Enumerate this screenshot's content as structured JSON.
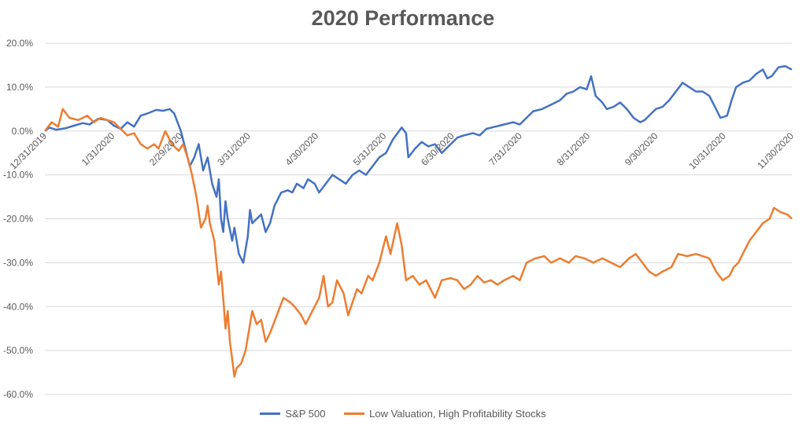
{
  "chart_data": {
    "type": "line",
    "title": "2020 Performance",
    "xlabel": "",
    "ylabel": "",
    "ylim": [
      -0.6,
      0.2
    ],
    "y_ticks": [
      {
        "value": 0.2,
        "label": "20.0%"
      },
      {
        "value": 0.1,
        "label": "10.0%"
      },
      {
        "value": 0.0,
        "label": "0.0%"
      },
      {
        "value": -0.1,
        "label": "-10.0%"
      },
      {
        "value": -0.2,
        "label": "-20.0%"
      },
      {
        "value": -0.3,
        "label": "-30.0%"
      },
      {
        "value": -0.4,
        "label": "-40.0%"
      },
      {
        "value": -0.5,
        "label": "-50.0%"
      },
      {
        "value": -0.6,
        "label": "-60.0%"
      }
    ],
    "x_ticks": [
      "12/31/2019",
      "1/31/2020",
      "2/29/2020",
      "3/31/2020",
      "4/30/2020",
      "5/31/2020",
      "6/30/2020",
      "7/31/2020",
      "8/31/2020",
      "9/30/2020",
      "10/31/2020",
      "11/30/2020"
    ],
    "grid": "horizontal",
    "legend_position": "bottom",
    "series": [
      {
        "name": "S&P 500",
        "color": "#4472C4",
        "points": [
          [
            "2019-12-31",
            0.0
          ],
          [
            "2020-01-02",
            0.008
          ],
          [
            "2020-01-05",
            0.003
          ],
          [
            "2020-01-09",
            0.006
          ],
          [
            "2020-01-13",
            0.012
          ],
          [
            "2020-01-17",
            0.018
          ],
          [
            "2020-01-20",
            0.015
          ],
          [
            "2020-01-24",
            0.028
          ],
          [
            "2020-01-28",
            0.025
          ],
          [
            "2020-01-31",
            0.012
          ],
          [
            "2020-02-03",
            0.005
          ],
          [
            "2020-02-06",
            0.02
          ],
          [
            "2020-02-09",
            0.01
          ],
          [
            "2020-02-12",
            0.035
          ],
          [
            "2020-02-15",
            0.04
          ],
          [
            "2020-02-19",
            0.048
          ],
          [
            "2020-02-22",
            0.046
          ],
          [
            "2020-02-25",
            0.05
          ],
          [
            "2020-02-27",
            0.04
          ],
          [
            "2020-03-01",
            0.0
          ],
          [
            "2020-03-03",
            -0.04
          ],
          [
            "2020-03-05",
            -0.08
          ],
          [
            "2020-03-07",
            -0.06
          ],
          [
            "2020-03-09",
            -0.03
          ],
          [
            "2020-03-11",
            -0.09
          ],
          [
            "2020-03-13",
            -0.06
          ],
          [
            "2020-03-15",
            -0.12
          ],
          [
            "2020-03-17",
            -0.15
          ],
          [
            "2020-03-18",
            -0.11
          ],
          [
            "2020-03-19",
            -0.2
          ],
          [
            "2020-03-20",
            -0.23
          ],
          [
            "2020-03-21",
            -0.16
          ],
          [
            "2020-03-22",
            -0.2
          ],
          [
            "2020-03-24",
            -0.25
          ],
          [
            "2020-03-25",
            -0.22
          ],
          [
            "2020-03-27",
            -0.28
          ],
          [
            "2020-03-29",
            -0.3
          ],
          [
            "2020-03-31",
            -0.24
          ],
          [
            "2020-04-01",
            -0.18
          ],
          [
            "2020-04-02",
            -0.21
          ],
          [
            "2020-04-04",
            -0.2
          ],
          [
            "2020-04-06",
            -0.19
          ],
          [
            "2020-04-08",
            -0.23
          ],
          [
            "2020-04-10",
            -0.21
          ],
          [
            "2020-04-12",
            -0.17
          ],
          [
            "2020-04-15",
            -0.14
          ],
          [
            "2020-04-18",
            -0.135
          ],
          [
            "2020-04-20",
            -0.14
          ],
          [
            "2020-04-22",
            -0.12
          ],
          [
            "2020-04-25",
            -0.13
          ],
          [
            "2020-04-27",
            -0.11
          ],
          [
            "2020-04-30",
            -0.12
          ],
          [
            "2020-05-02",
            -0.14
          ],
          [
            "2020-05-05",
            -0.12
          ],
          [
            "2020-05-08",
            -0.1
          ],
          [
            "2020-05-11",
            -0.11
          ],
          [
            "2020-05-14",
            -0.12
          ],
          [
            "2020-05-17",
            -0.1
          ],
          [
            "2020-05-20",
            -0.09
          ],
          [
            "2020-05-23",
            -0.1
          ],
          [
            "2020-05-26",
            -0.08
          ],
          [
            "2020-05-29",
            -0.06
          ],
          [
            "2020-06-01",
            -0.05
          ],
          [
            "2020-06-04",
            -0.02
          ],
          [
            "2020-06-08",
            0.008
          ],
          [
            "2020-06-10",
            -0.005
          ],
          [
            "2020-06-11",
            -0.06
          ],
          [
            "2020-06-14",
            -0.04
          ],
          [
            "2020-06-17",
            -0.025
          ],
          [
            "2020-06-20",
            -0.035
          ],
          [
            "2020-06-23",
            -0.03
          ],
          [
            "2020-06-26",
            -0.05
          ],
          [
            "2020-06-30",
            -0.03
          ],
          [
            "2020-07-03",
            -0.015
          ],
          [
            "2020-07-06",
            -0.01
          ],
          [
            "2020-07-10",
            -0.005
          ],
          [
            "2020-07-13",
            -0.01
          ],
          [
            "2020-07-16",
            0.005
          ],
          [
            "2020-07-20",
            0.01
          ],
          [
            "2020-07-24",
            0.015
          ],
          [
            "2020-07-28",
            0.02
          ],
          [
            "2020-07-31",
            0.015
          ],
          [
            "2020-08-03",
            0.03
          ],
          [
            "2020-08-06",
            0.045
          ],
          [
            "2020-08-10",
            0.05
          ],
          [
            "2020-08-14",
            0.06
          ],
          [
            "2020-08-18",
            0.07
          ],
          [
            "2020-08-21",
            0.085
          ],
          [
            "2020-08-24",
            0.09
          ],
          [
            "2020-08-27",
            0.1
          ],
          [
            "2020-08-30",
            0.095
          ],
          [
            "2020-09-01",
            0.125
          ],
          [
            "2020-09-03",
            0.08
          ],
          [
            "2020-09-06",
            0.065
          ],
          [
            "2020-09-08",
            0.05
          ],
          [
            "2020-09-11",
            0.055
          ],
          [
            "2020-09-14",
            0.065
          ],
          [
            "2020-09-17",
            0.05
          ],
          [
            "2020-09-20",
            0.03
          ],
          [
            "2020-09-23",
            0.02
          ],
          [
            "2020-09-25",
            0.025
          ],
          [
            "2020-09-28",
            0.04
          ],
          [
            "2020-09-30",
            0.05
          ],
          [
            "2020-10-03",
            0.055
          ],
          [
            "2020-10-06",
            0.07
          ],
          [
            "2020-10-09",
            0.09
          ],
          [
            "2020-10-12",
            0.11
          ],
          [
            "2020-10-15",
            0.1
          ],
          [
            "2020-10-18",
            0.09
          ],
          [
            "2020-10-21",
            0.09
          ],
          [
            "2020-10-24",
            0.08
          ],
          [
            "2020-10-27",
            0.05
          ],
          [
            "2020-10-29",
            0.03
          ],
          [
            "2020-11-01",
            0.035
          ],
          [
            "2020-11-03",
            0.07
          ],
          [
            "2020-11-05",
            0.1
          ],
          [
            "2020-11-08",
            0.11
          ],
          [
            "2020-11-11",
            0.115
          ],
          [
            "2020-11-14",
            0.13
          ],
          [
            "2020-11-17",
            0.14
          ],
          [
            "2020-11-19",
            0.12
          ],
          [
            "2020-11-21",
            0.125
          ],
          [
            "2020-11-24",
            0.145
          ],
          [
            "2020-11-27",
            0.148
          ],
          [
            "2020-11-30",
            0.14
          ]
        ]
      },
      {
        "name": "Low Valuation, High Profitability Stocks",
        "color": "#ED7D31",
        "points": [
          [
            "2019-12-31",
            0.0
          ],
          [
            "2020-01-03",
            0.02
          ],
          [
            "2020-01-06",
            0.01
          ],
          [
            "2020-01-08",
            0.05
          ],
          [
            "2020-01-11",
            0.03
          ],
          [
            "2020-01-15",
            0.025
          ],
          [
            "2020-01-19",
            0.035
          ],
          [
            "2020-01-22",
            0.02
          ],
          [
            "2020-01-25",
            0.03
          ],
          [
            "2020-01-28",
            0.025
          ],
          [
            "2020-01-31",
            0.02
          ],
          [
            "2020-02-03",
            0.005
          ],
          [
            "2020-02-06",
            -0.01
          ],
          [
            "2020-02-09",
            -0.005
          ],
          [
            "2020-02-12",
            -0.03
          ],
          [
            "2020-02-15",
            -0.04
          ],
          [
            "2020-02-18",
            -0.03
          ],
          [
            "2020-02-20",
            -0.04
          ],
          [
            "2020-02-23",
            0.0
          ],
          [
            "2020-02-26",
            -0.03
          ],
          [
            "2020-02-29",
            -0.045
          ],
          [
            "2020-03-02",
            -0.03
          ],
          [
            "2020-03-04",
            -0.06
          ],
          [
            "2020-03-06",
            -0.1
          ],
          [
            "2020-03-08",
            -0.15
          ],
          [
            "2020-03-10",
            -0.22
          ],
          [
            "2020-03-12",
            -0.2
          ],
          [
            "2020-03-13",
            -0.17
          ],
          [
            "2020-03-14",
            -0.21
          ],
          [
            "2020-03-16",
            -0.25
          ],
          [
            "2020-03-17",
            -0.3
          ],
          [
            "2020-03-18",
            -0.35
          ],
          [
            "2020-03-19",
            -0.32
          ],
          [
            "2020-03-20",
            -0.38
          ],
          [
            "2020-03-21",
            -0.45
          ],
          [
            "2020-03-22",
            -0.41
          ],
          [
            "2020-03-23",
            -0.48
          ],
          [
            "2020-03-24",
            -0.52
          ],
          [
            "2020-03-25",
            -0.56
          ],
          [
            "2020-03-26",
            -0.54
          ],
          [
            "2020-03-28",
            -0.53
          ],
          [
            "2020-03-30",
            -0.5
          ],
          [
            "2020-03-31",
            -0.47
          ],
          [
            "2020-04-02",
            -0.41
          ],
          [
            "2020-04-04",
            -0.44
          ],
          [
            "2020-04-06",
            -0.43
          ],
          [
            "2020-04-08",
            -0.48
          ],
          [
            "2020-04-10",
            -0.46
          ],
          [
            "2020-04-13",
            -0.42
          ],
          [
            "2020-04-16",
            -0.38
          ],
          [
            "2020-04-19",
            -0.39
          ],
          [
            "2020-04-21",
            -0.4
          ],
          [
            "2020-04-24",
            -0.42
          ],
          [
            "2020-04-26",
            -0.44
          ],
          [
            "2020-04-29",
            -0.41
          ],
          [
            "2020-05-02",
            -0.38
          ],
          [
            "2020-05-04",
            -0.33
          ],
          [
            "2020-05-06",
            -0.4
          ],
          [
            "2020-05-08",
            -0.39
          ],
          [
            "2020-05-10",
            -0.34
          ],
          [
            "2020-05-13",
            -0.37
          ],
          [
            "2020-05-15",
            -0.42
          ],
          [
            "2020-05-17",
            -0.39
          ],
          [
            "2020-05-19",
            -0.36
          ],
          [
            "2020-05-21",
            -0.37
          ],
          [
            "2020-05-24",
            -0.33
          ],
          [
            "2020-05-26",
            -0.34
          ],
          [
            "2020-05-29",
            -0.3
          ],
          [
            "2020-06-01",
            -0.24
          ],
          [
            "2020-06-03",
            -0.28
          ],
          [
            "2020-06-06",
            -0.21
          ],
          [
            "2020-06-08",
            -0.26
          ],
          [
            "2020-06-10",
            -0.34
          ],
          [
            "2020-06-13",
            -0.33
          ],
          [
            "2020-06-16",
            -0.35
          ],
          [
            "2020-06-19",
            -0.34
          ],
          [
            "2020-06-21",
            -0.36
          ],
          [
            "2020-06-23",
            -0.38
          ],
          [
            "2020-06-26",
            -0.34
          ],
          [
            "2020-06-30",
            -0.335
          ],
          [
            "2020-07-03",
            -0.34
          ],
          [
            "2020-07-06",
            -0.36
          ],
          [
            "2020-07-09",
            -0.35
          ],
          [
            "2020-07-12",
            -0.33
          ],
          [
            "2020-07-15",
            -0.345
          ],
          [
            "2020-07-18",
            -0.34
          ],
          [
            "2020-07-21",
            -0.35
          ],
          [
            "2020-07-24",
            -0.34
          ],
          [
            "2020-07-28",
            -0.33
          ],
          [
            "2020-07-31",
            -0.34
          ],
          [
            "2020-08-03",
            -0.3
          ],
          [
            "2020-08-07",
            -0.29
          ],
          [
            "2020-08-11",
            -0.285
          ],
          [
            "2020-08-14",
            -0.3
          ],
          [
            "2020-08-18",
            -0.29
          ],
          [
            "2020-08-22",
            -0.3
          ],
          [
            "2020-08-25",
            -0.285
          ],
          [
            "2020-08-29",
            -0.29
          ],
          [
            "2020-09-02",
            -0.3
          ],
          [
            "2020-09-06",
            -0.29
          ],
          [
            "2020-09-10",
            -0.3
          ],
          [
            "2020-09-14",
            -0.31
          ],
          [
            "2020-09-18",
            -0.29
          ],
          [
            "2020-09-21",
            -0.28
          ],
          [
            "2020-09-24",
            -0.3
          ],
          [
            "2020-09-27",
            -0.32
          ],
          [
            "2020-09-30",
            -0.33
          ],
          [
            "2020-10-03",
            -0.32
          ],
          [
            "2020-10-07",
            -0.31
          ],
          [
            "2020-10-10",
            -0.28
          ],
          [
            "2020-10-14",
            -0.285
          ],
          [
            "2020-10-18",
            -0.28
          ],
          [
            "2020-10-21",
            -0.285
          ],
          [
            "2020-10-24",
            -0.29
          ],
          [
            "2020-10-27",
            -0.32
          ],
          [
            "2020-10-30",
            -0.34
          ],
          [
            "2020-11-02",
            -0.33
          ],
          [
            "2020-11-04",
            -0.31
          ],
          [
            "2020-11-06",
            -0.3
          ],
          [
            "2020-11-09",
            -0.27
          ],
          [
            "2020-11-11",
            -0.25
          ],
          [
            "2020-11-14",
            -0.23
          ],
          [
            "2020-11-17",
            -0.21
          ],
          [
            "2020-11-20",
            -0.2
          ],
          [
            "2020-11-22",
            -0.175
          ],
          [
            "2020-11-25",
            -0.185
          ],
          [
            "2020-11-28",
            -0.19
          ],
          [
            "2020-11-30",
            -0.2
          ]
        ]
      }
    ]
  }
}
